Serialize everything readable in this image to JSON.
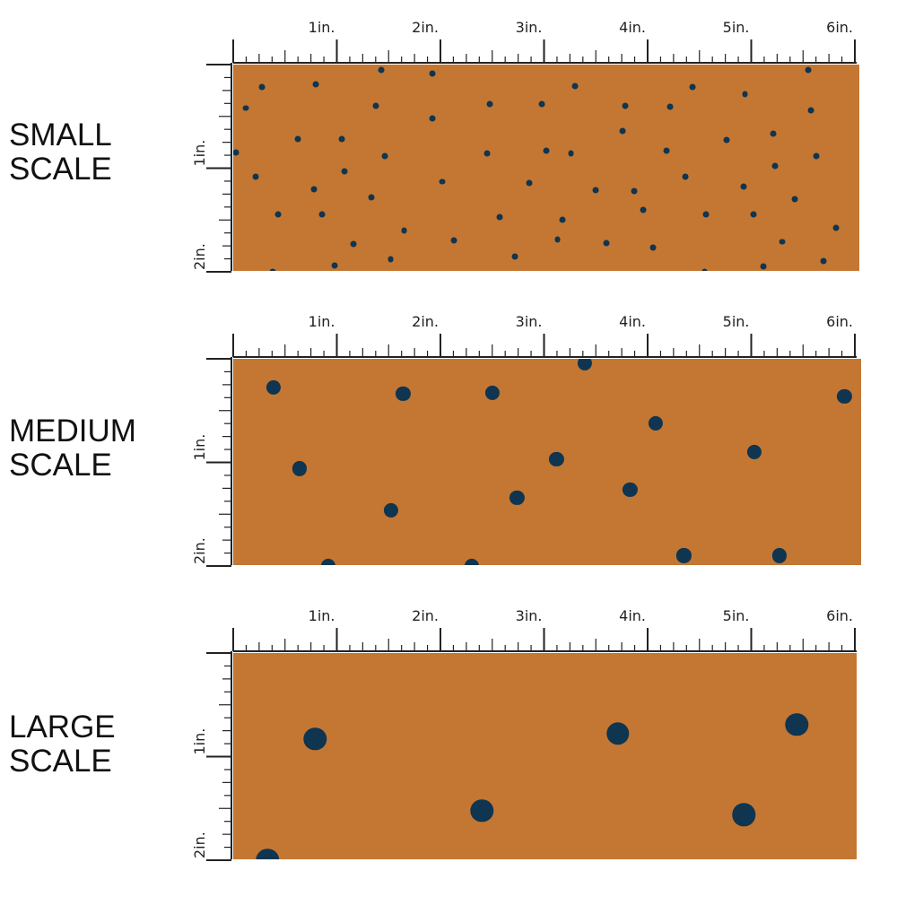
{
  "colors": {
    "fabric": "#C47733",
    "dot": "#0F3550",
    "ruler": "#222222"
  },
  "inch_labels": [
    "1in.",
    "2in.",
    "3in.",
    "4in.",
    "5in.",
    "6in."
  ],
  "vertical_labels": [
    "1in.",
    "2in."
  ],
  "panels": [
    {
      "id": "small",
      "label": "SMALL\nSCALE",
      "dot_size_in": 0.06,
      "dots": [
        [
          0.28,
          0.22
        ],
        [
          0.12,
          0.42
        ],
        [
          0.03,
          0.85
        ],
        [
          0.22,
          1.08
        ],
        [
          0.43,
          1.45
        ],
        [
          0.62,
          0.72
        ],
        [
          0.8,
          0.19
        ],
        [
          0.78,
          1.2
        ],
        [
          0.86,
          1.45
        ],
        [
          1.07,
          1.03
        ],
        [
          1.05,
          0.72
        ],
        [
          0.98,
          1.94
        ],
        [
          1.16,
          1.73
        ],
        [
          1.33,
          1.28
        ],
        [
          1.38,
          0.4
        ],
        [
          1.43,
          0.05
        ],
        [
          1.46,
          0.88
        ],
        [
          1.52,
          1.88
        ],
        [
          1.65,
          1.6
        ],
        [
          1.92,
          0.52
        ],
        [
          1.92,
          0.09
        ],
        [
          2.02,
          1.13
        ],
        [
          2.13,
          1.7
        ],
        [
          2.45,
          0.86
        ],
        [
          2.48,
          0.38
        ],
        [
          2.57,
          1.47
        ],
        [
          2.72,
          1.85
        ],
        [
          2.86,
          1.14
        ],
        [
          2.98,
          0.38
        ],
        [
          3.02,
          0.83
        ],
        [
          3.13,
          1.69
        ],
        [
          3.18,
          1.5
        ],
        [
          3.26,
          0.86
        ],
        [
          3.3,
          0.21
        ],
        [
          3.5,
          1.21
        ],
        [
          3.6,
          1.72
        ],
        [
          3.76,
          0.64
        ],
        [
          3.78,
          0.4
        ],
        [
          3.87,
          1.22
        ],
        [
          3.96,
          1.4
        ],
        [
          4.05,
          1.77
        ],
        [
          4.18,
          0.83
        ],
        [
          4.22,
          0.41
        ],
        [
          4.36,
          1.08
        ],
        [
          4.43,
          0.22
        ],
        [
          4.56,
          1.45
        ],
        [
          4.55,
          2.0
        ],
        [
          4.76,
          0.73
        ],
        [
          4.94,
          0.29
        ],
        [
          4.93,
          1.18
        ],
        [
          5.02,
          1.45
        ],
        [
          5.12,
          1.95
        ],
        [
          5.21,
          0.67
        ],
        [
          5.23,
          0.98
        ],
        [
          5.3,
          1.71
        ],
        [
          5.42,
          1.3
        ],
        [
          5.55,
          0.05
        ],
        [
          5.58,
          0.44
        ],
        [
          5.63,
          0.88
        ],
        [
          5.7,
          1.9
        ],
        [
          5.82,
          1.58
        ],
        [
          0.38,
          2.0
        ]
      ]
    },
    {
      "id": "medium",
      "label": "MEDIUM\nSCALE",
      "dot_size_in": 0.14,
      "dots": [
        [
          0.39,
          0.28
        ],
        [
          0.64,
          1.06
        ],
        [
          1.52,
          1.46
        ],
        [
          0.92,
          2.0
        ],
        [
          1.64,
          0.34
        ],
        [
          2.5,
          0.33
        ],
        [
          2.74,
          1.34
        ],
        [
          2.3,
          2.0
        ],
        [
          3.12,
          0.97
        ],
        [
          3.39,
          0.04
        ],
        [
          3.83,
          1.26
        ],
        [
          4.08,
          0.62
        ],
        [
          4.35,
          1.9
        ],
        [
          5.03,
          0.9
        ],
        [
          5.27,
          1.9
        ],
        [
          5.9,
          0.36
        ]
      ]
    },
    {
      "id": "large",
      "label": "LARGE\nSCALE",
      "dot_size_in": 0.22,
      "dots": [
        [
          0.79,
          0.83
        ],
        [
          2.4,
          1.52
        ],
        [
          3.71,
          0.78
        ],
        [
          4.93,
          1.56
        ],
        [
          5.44,
          0.69
        ],
        [
          0.33,
          2.0
        ]
      ]
    }
  ]
}
